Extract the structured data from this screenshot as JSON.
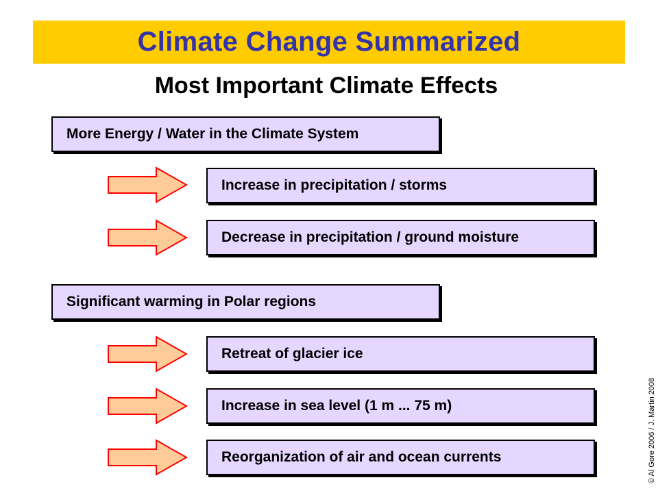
{
  "title": "Climate Change Summarized",
  "subtitle": "Most Important Climate Effects",
  "groups": [
    {
      "heading": "More Energy / Water in the Climate System",
      "effects": [
        "Increase in precipitation / storms",
        "Decrease in precipitation / ground moisture"
      ]
    },
    {
      "heading": "Significant warming in Polar regions",
      "effects": [
        "Retreat of glacier ice",
        "Increase in sea level (1 m ... 75 m)",
        "Reorganization of air and ocean currents"
      ]
    }
  ],
  "credit": "© Al Gore 2006  /  J. Martin 2008",
  "colors": {
    "banner": "#ffcc00",
    "title": "#3333aa",
    "box_fill": "#e5d7ff",
    "arrow_fill": "#ffcc99",
    "arrow_stroke": "#ff0000"
  }
}
